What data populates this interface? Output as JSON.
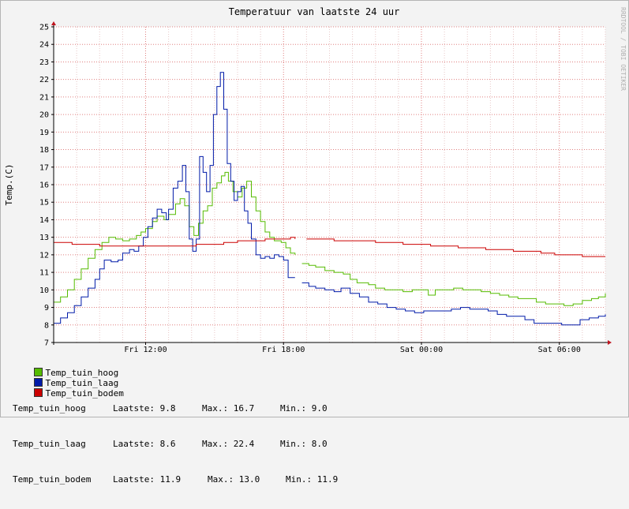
{
  "chart_data": {
    "type": "line",
    "title": "Temperatuur van laatste 24 uur",
    "ylabel": "Temp.(C)",
    "watermark": "RRDTOOL / TOBI OETIKER",
    "ylim": [
      7,
      25
    ],
    "yticks": [
      7,
      8,
      9,
      10,
      11,
      12,
      13,
      14,
      15,
      16,
      17,
      18,
      19,
      20,
      21,
      22,
      23,
      24,
      25
    ],
    "xlim": [
      8.0,
      32.0
    ],
    "xticks": [
      {
        "value": 12,
        "label": "Fri 12:00"
      },
      {
        "value": 18,
        "label": "Fri 18:00"
      },
      {
        "value": 24,
        "label": "Sat 00:00"
      },
      {
        "value": 30,
        "label": "Sat 06:00"
      }
    ],
    "colors": {
      "hoog": "#55bb00",
      "laag": "#001aa8",
      "bodem": "#cc0000",
      "grid": "#e4a0a0",
      "axis": "#000000",
      "arrow": "#c0141e"
    },
    "series": [
      {
        "name": "Temp_tuin_hoog",
        "color": "#55bb00",
        "segments": [
          [
            [
              8.0,
              9.3
            ],
            [
              8.3,
              9.6
            ],
            [
              8.6,
              10.0
            ],
            [
              8.9,
              10.6
            ],
            [
              9.2,
              11.2
            ],
            [
              9.5,
              11.8
            ],
            [
              9.8,
              12.3
            ],
            [
              10.1,
              12.7
            ],
            [
              10.4,
              13.0
            ],
            [
              10.7,
              12.9
            ],
            [
              11.0,
              12.8
            ],
            [
              11.3,
              12.9
            ],
            [
              11.6,
              13.1
            ],
            [
              11.8,
              13.3
            ],
            [
              12.0,
              13.5
            ],
            [
              12.3,
              13.9
            ],
            [
              12.5,
              14.2
            ],
            [
              12.8,
              14.0
            ],
            [
              13.0,
              14.3
            ],
            [
              13.3,
              14.9
            ],
            [
              13.5,
              15.2
            ],
            [
              13.7,
              14.8
            ],
            [
              13.9,
              13.6
            ],
            [
              14.1,
              13.1
            ],
            [
              14.3,
              13.8
            ],
            [
              14.5,
              14.5
            ],
            [
              14.7,
              14.8
            ],
            [
              14.9,
              15.8
            ],
            [
              15.1,
              16.1
            ],
            [
              15.3,
              16.5
            ],
            [
              15.45,
              16.7
            ],
            [
              15.6,
              16.2
            ],
            [
              15.8,
              15.6
            ],
            [
              16.0,
              15.3
            ],
            [
              16.2,
              15.8
            ],
            [
              16.4,
              16.2
            ],
            [
              16.6,
              15.3
            ],
            [
              16.8,
              14.5
            ],
            [
              17.0,
              13.9
            ],
            [
              17.2,
              13.3
            ],
            [
              17.4,
              13.0
            ],
            [
              17.6,
              12.8
            ],
            [
              17.9,
              12.7
            ],
            [
              18.1,
              12.4
            ],
            [
              18.3,
              12.1
            ],
            [
              18.5,
              12.0
            ]
          ],
          [
            [
              18.8,
              11.5
            ],
            [
              19.1,
              11.4
            ],
            [
              19.4,
              11.3
            ],
            [
              19.8,
              11.1
            ],
            [
              20.2,
              11.0
            ],
            [
              20.6,
              10.9
            ],
            [
              20.9,
              10.6
            ],
            [
              21.2,
              10.4
            ],
            [
              21.7,
              10.3
            ],
            [
              22.0,
              10.1
            ],
            [
              22.4,
              10.0
            ],
            [
              22.8,
              10.0
            ],
            [
              23.2,
              9.9
            ],
            [
              23.6,
              10.0
            ],
            [
              24.0,
              10.0
            ],
            [
              24.3,
              9.7
            ],
            [
              24.6,
              10.0
            ],
            [
              25.0,
              10.0
            ],
            [
              25.4,
              10.1
            ],
            [
              25.8,
              10.0
            ],
            [
              26.2,
              10.0
            ],
            [
              26.6,
              9.9
            ],
            [
              27.0,
              9.8
            ],
            [
              27.4,
              9.7
            ],
            [
              27.8,
              9.6
            ],
            [
              28.2,
              9.5
            ],
            [
              28.6,
              9.5
            ],
            [
              29.0,
              9.3
            ],
            [
              29.4,
              9.2
            ],
            [
              29.8,
              9.2
            ],
            [
              30.2,
              9.1
            ],
            [
              30.6,
              9.2
            ],
            [
              31.0,
              9.4
            ],
            [
              31.4,
              9.5
            ],
            [
              31.7,
              9.6
            ],
            [
              32.0,
              9.8
            ]
          ]
        ]
      },
      {
        "name": "Temp_tuin_laag",
        "color": "#001aa8",
        "segments": [
          [
            [
              8.0,
              8.1
            ],
            [
              8.3,
              8.4
            ],
            [
              8.6,
              8.7
            ],
            [
              8.9,
              9.1
            ],
            [
              9.2,
              9.6
            ],
            [
              9.5,
              10.1
            ],
            [
              9.8,
              10.6
            ],
            [
              10.0,
              11.2
            ],
            [
              10.2,
              11.7
            ],
            [
              10.5,
              11.6
            ],
            [
              10.8,
              11.7
            ],
            [
              11.0,
              12.1
            ],
            [
              11.3,
              12.3
            ],
            [
              11.5,
              12.2
            ],
            [
              11.7,
              12.5
            ],
            [
              11.9,
              13.0
            ],
            [
              12.1,
              13.6
            ],
            [
              12.3,
              14.1
            ],
            [
              12.5,
              14.6
            ],
            [
              12.7,
              14.4
            ],
            [
              12.9,
              14.0
            ],
            [
              13.0,
              14.6
            ],
            [
              13.2,
              15.8
            ],
            [
              13.4,
              16.2
            ],
            [
              13.6,
              17.1
            ],
            [
              13.75,
              15.6
            ],
            [
              13.9,
              12.9
            ],
            [
              14.05,
              12.2
            ],
            [
              14.2,
              12.9
            ],
            [
              14.35,
              17.6
            ],
            [
              14.5,
              16.7
            ],
            [
              14.65,
              15.6
            ],
            [
              14.8,
              17.1
            ],
            [
              14.95,
              20.0
            ],
            [
              15.1,
              21.6
            ],
            [
              15.25,
              22.4
            ],
            [
              15.4,
              20.3
            ],
            [
              15.55,
              17.2
            ],
            [
              15.7,
              16.2
            ],
            [
              15.85,
              15.1
            ],
            [
              16.0,
              15.6
            ],
            [
              16.15,
              15.9
            ],
            [
              16.3,
              14.5
            ],
            [
              16.45,
              13.8
            ],
            [
              16.6,
              12.9
            ],
            [
              16.8,
              12.0
            ],
            [
              17.0,
              11.8
            ],
            [
              17.2,
              11.9
            ],
            [
              17.4,
              11.8
            ],
            [
              17.6,
              12.0
            ],
            [
              17.8,
              11.9
            ],
            [
              18.0,
              11.7
            ],
            [
              18.2,
              10.7
            ],
            [
              18.5,
              10.7
            ]
          ],
          [
            [
              18.8,
              10.4
            ],
            [
              19.1,
              10.2
            ],
            [
              19.4,
              10.1
            ],
            [
              19.8,
              10.0
            ],
            [
              20.2,
              9.9
            ],
            [
              20.5,
              10.1
            ],
            [
              20.9,
              9.8
            ],
            [
              21.3,
              9.6
            ],
            [
              21.7,
              9.3
            ],
            [
              22.1,
              9.2
            ],
            [
              22.5,
              9.0
            ],
            [
              22.9,
              8.9
            ],
            [
              23.3,
              8.8
            ],
            [
              23.7,
              8.7
            ],
            [
              24.1,
              8.8
            ],
            [
              24.5,
              8.8
            ],
            [
              24.9,
              8.8
            ],
            [
              25.3,
              8.9
            ],
            [
              25.7,
              9.0
            ],
            [
              26.1,
              8.9
            ],
            [
              26.5,
              8.9
            ],
            [
              26.9,
              8.8
            ],
            [
              27.3,
              8.6
            ],
            [
              27.7,
              8.5
            ],
            [
              28.1,
              8.5
            ],
            [
              28.5,
              8.3
            ],
            [
              28.9,
              8.1
            ],
            [
              29.3,
              8.1
            ],
            [
              29.7,
              8.1
            ],
            [
              30.1,
              8.0
            ],
            [
              30.5,
              8.0
            ],
            [
              30.9,
              8.3
            ],
            [
              31.3,
              8.4
            ],
            [
              31.7,
              8.5
            ],
            [
              32.0,
              8.6
            ]
          ]
        ]
      },
      {
        "name": "Temp_tuin_bodem",
        "color": "#cc0000",
        "segments": [
          [
            [
              8.0,
              12.7
            ],
            [
              8.4,
              12.7
            ],
            [
              8.8,
              12.6
            ],
            [
              9.4,
              12.6
            ],
            [
              10.0,
              12.5
            ],
            [
              10.6,
              12.5
            ],
            [
              11.2,
              12.5
            ],
            [
              11.8,
              12.5
            ],
            [
              12.4,
              12.5
            ],
            [
              13.0,
              12.5
            ],
            [
              13.6,
              12.5
            ],
            [
              14.2,
              12.6
            ],
            [
              14.8,
              12.6
            ],
            [
              15.4,
              12.7
            ],
            [
              16.0,
              12.8
            ],
            [
              16.6,
              12.8
            ],
            [
              17.2,
              12.9
            ],
            [
              17.8,
              12.9
            ],
            [
              18.3,
              13.0
            ],
            [
              18.5,
              12.9
            ]
          ],
          [
            [
              19.0,
              12.9
            ],
            [
              19.6,
              12.9
            ],
            [
              20.2,
              12.8
            ],
            [
              20.8,
              12.8
            ],
            [
              21.4,
              12.8
            ],
            [
              22.0,
              12.7
            ],
            [
              22.6,
              12.7
            ],
            [
              23.2,
              12.6
            ],
            [
              23.8,
              12.6
            ],
            [
              24.4,
              12.5
            ],
            [
              25.0,
              12.5
            ],
            [
              25.6,
              12.4
            ],
            [
              26.2,
              12.4
            ],
            [
              26.8,
              12.3
            ],
            [
              27.4,
              12.3
            ],
            [
              28.0,
              12.2
            ],
            [
              28.6,
              12.2
            ],
            [
              29.2,
              12.1
            ],
            [
              29.8,
              12.0
            ],
            [
              30.4,
              12.0
            ],
            [
              31.0,
              11.9
            ],
            [
              31.6,
              11.9
            ],
            [
              32.0,
              11.9
            ]
          ]
        ]
      }
    ],
    "legend_placement": "bottom"
  },
  "legend": [
    {
      "name": "Temp_tuin_hoog",
      "color": "#55bb00"
    },
    {
      "name": "Temp_tuin_laag",
      "color": "#001aa8"
    },
    {
      "name": "Temp_tuin_bodem",
      "color": "#cc0000"
    }
  ],
  "stats": [
    {
      "name": "Temp_tuin_hoog",
      "last": "Laatste: 9.8",
      "max": "Max.: 16.7",
      "min": "Min.: 9.0"
    },
    {
      "name": "Temp_tuin_laag",
      "last": "Laatste: 8.6",
      "max": "Max.: 22.4",
      "min": "Min.: 8.0"
    },
    {
      "name": "Temp_tuin_bodem",
      "last": "Laatste: 11.9",
      "max": "Max.: 13.0",
      "min": "Min.: 11.9"
    }
  ]
}
